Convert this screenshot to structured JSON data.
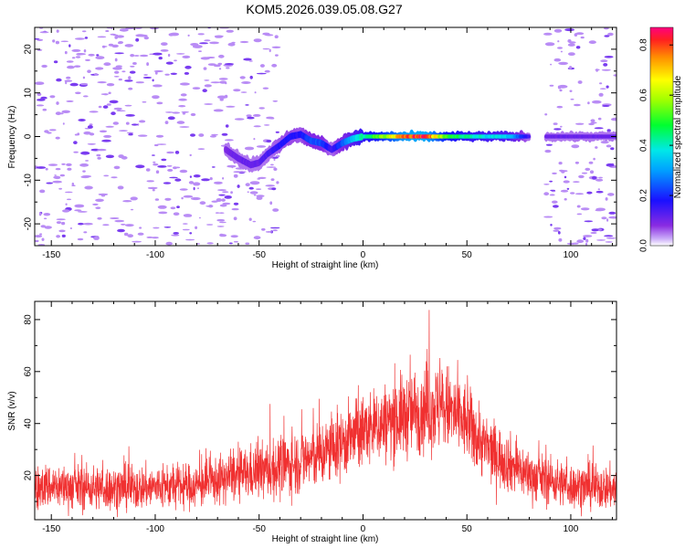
{
  "title": "KOM5.2026.039.05.08.G27",
  "colors": {
    "snr_line": "#f03030",
    "noise_speckle": "#b98cf5",
    "noise_speckle_dark": "#7a3cf0"
  },
  "chart_data": [
    {
      "type": "heatmap",
      "name": "spectrogram",
      "xlabel": "Height of straight line (km)",
      "ylabel": "Frequency (Hz)",
      "xlim": [
        -158,
        122
      ],
      "ylim": [
        -25,
        25
      ],
      "xticks": [
        -150,
        -100,
        -50,
        0,
        50,
        100
      ],
      "yticks": [
        -20,
        -10,
        0,
        10,
        20
      ],
      "trace": {
        "description_points_x_km": [
          -66,
          -60,
          -54,
          -50,
          -46,
          -40,
          -35,
          -30,
          -25,
          -20,
          -15,
          -10,
          -5,
          0,
          10,
          20,
          30,
          40,
          50,
          60,
          70,
          80,
          90,
          100,
          110,
          120
        ],
        "frequency_hz": [
          -3,
          -5,
          -6.5,
          -6,
          -4,
          -2,
          0,
          0.5,
          -1,
          -1.5,
          -3,
          -1.5,
          -0.5,
          0,
          0,
          0,
          0,
          0,
          0,
          0,
          0,
          0,
          0,
          0,
          0,
          0
        ],
        "amplitude": [
          0.1,
          0.12,
          0.12,
          0.12,
          0.15,
          0.18,
          0.2,
          0.18,
          0.25,
          0.25,
          0.15,
          0.25,
          0.35,
          0.45,
          0.6,
          0.85,
          0.9,
          0.55,
          0.45,
          0.4,
          0.38,
          0.15,
          0.12,
          0.12,
          0.12,
          0.12
        ]
      },
      "noise_regions_x_km": [
        [
          -158,
          -67
        ],
        [
          -68,
          -40
        ],
        [
          88,
          122
        ]
      ]
    },
    {
      "type": "colorbar",
      "name": "amplitude-colorbar",
      "label": "Normalized spectral amplitude",
      "range": [
        0,
        0.87
      ],
      "ticks": [
        "0.0",
        "0.2",
        "0.4",
        "0.6",
        "0.8"
      ],
      "tick_values": [
        0,
        0.2,
        0.4,
        0.6,
        0.8
      ],
      "colormap": [
        [
          0.0,
          "#ffffff"
        ],
        [
          0.03,
          "#c8a8f8"
        ],
        [
          0.08,
          "#8a2be2"
        ],
        [
          0.18,
          "#1a10ff"
        ],
        [
          0.3,
          "#00a0ff"
        ],
        [
          0.38,
          "#00e8e8"
        ],
        [
          0.48,
          "#00ff30"
        ],
        [
          0.58,
          "#a0ff00"
        ],
        [
          0.66,
          "#ffff00"
        ],
        [
          0.75,
          "#ff9000"
        ],
        [
          0.82,
          "#ff2020"
        ],
        [
          0.87,
          "#ff0080"
        ]
      ]
    },
    {
      "type": "line",
      "name": "snr",
      "xlabel": "Height of straight line (km)",
      "ylabel": "SNR (v/v)",
      "xlim": [
        -158,
        122
      ],
      "ylim": [
        3,
        87
      ],
      "xticks": [
        -150,
        -100,
        -50,
        0,
        50,
        100
      ],
      "yticks": [
        20,
        40,
        60,
        80
      ],
      "envelope": {
        "x": [
          -158,
          -120,
          -80,
          -60,
          -40,
          -20,
          0,
          20,
          30,
          40,
          50,
          60,
          80,
          100,
          122
        ],
        "mean": [
          16,
          15,
          16,
          20,
          23,
          28,
          37,
          43,
          46,
          46,
          40,
          30,
          20,
          16,
          15
        ],
        "spread": [
          8,
          8,
          8,
          9,
          11,
          12,
          13,
          15,
          16,
          16,
          14,
          12,
          9,
          8,
          8
        ]
      }
    }
  ]
}
